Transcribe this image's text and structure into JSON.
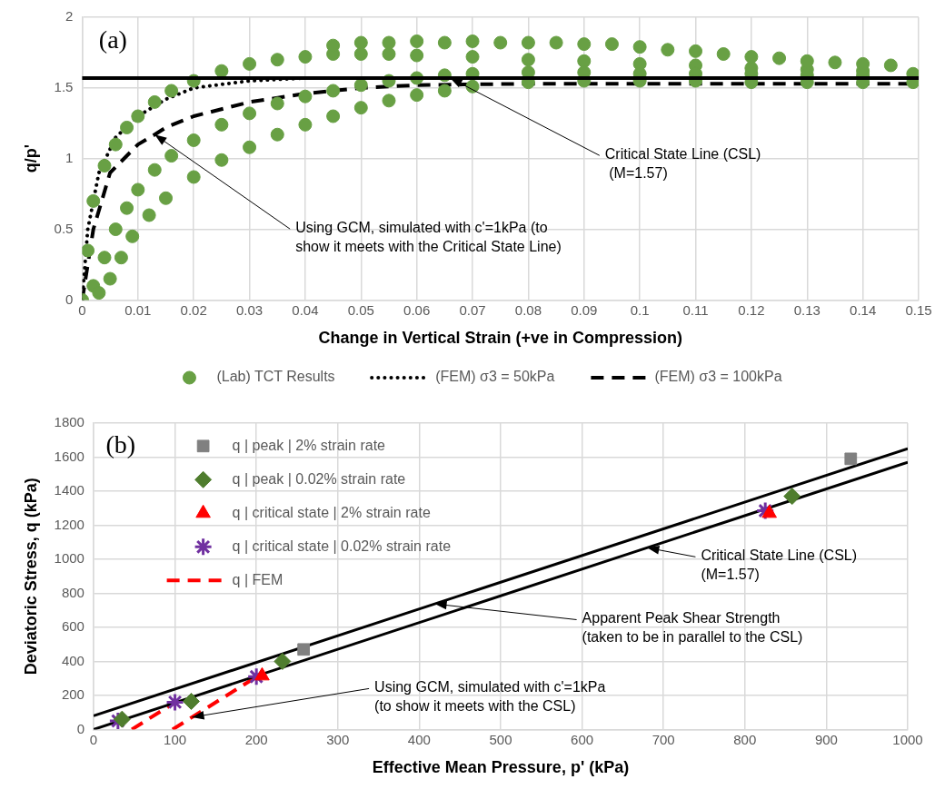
{
  "chart_data": [
    {
      "type": "scatter",
      "xlabel": "Change in Vertical Strain (+ve in Compression)",
      "ylabel": "q/p'",
      "xlim": [
        0,
        0.15
      ],
      "xticks": [
        0,
        0.01,
        0.02,
        0.03,
        0.04,
        0.05,
        0.06,
        0.07,
        0.08,
        0.09,
        0.1,
        0.11,
        0.12,
        0.13,
        0.14,
        0.15
      ],
      "ylim": [
        0,
        2
      ],
      "yticks": [
        0,
        0.5,
        1,
        1.5,
        2
      ],
      "grid": true,
      "legend": "bottom",
      "series": [
        {
          "name": "(Lab) TCT Results",
          "color": "#68a044",
          "marker": "circle",
          "x": [
            0,
            0.001,
            0.002,
            0.004,
            0.006,
            0.008,
            0.01,
            0.013,
            0.016,
            0.02,
            0.025,
            0.03,
            0.035,
            0.04,
            0.045,
            0.05,
            0.055,
            0.06,
            0.07,
            0.08,
            0.09,
            0.1,
            0.11,
            0.12,
            0.13,
            0.14,
            0.149,
            0.045,
            0.05,
            0.055,
            0.06,
            0.065,
            0.07,
            0.075,
            0.08,
            0.085,
            0.09,
            0.095,
            0.1,
            0.105,
            0.11,
            0.115,
            0.12,
            0.125,
            0.13,
            0.135,
            0.14,
            0.145,
            0.002,
            0.004,
            0.006,
            0.008,
            0.01,
            0.013,
            0.016,
            0.02,
            0.025,
            0.03,
            0.035,
            0.04,
            0.045,
            0.05,
            0.055,
            0.06,
            0.065,
            0.07,
            0.08,
            0.09,
            0.1,
            0.11,
            0.12,
            0.13,
            0.14,
            0.003,
            0.005,
            0.007,
            0.009,
            0.012,
            0.015,
            0.02,
            0.025,
            0.03,
            0.035,
            0.04,
            0.045,
            0.05,
            0.055,
            0.06,
            0.065,
            0.07,
            0.08,
            0.09,
            0.1,
            0.11,
            0.12,
            0.13,
            0.14,
            0.149
          ],
          "values": [
            0,
            0.35,
            0.7,
            0.95,
            1.1,
            1.22,
            1.3,
            1.4,
            1.48,
            1.55,
            1.62,
            1.67,
            1.7,
            1.72,
            1.74,
            1.74,
            1.74,
            1.73,
            1.72,
            1.7,
            1.69,
            1.67,
            1.66,
            1.64,
            1.63,
            1.62,
            1.6,
            1.8,
            1.82,
            1.82,
            1.83,
            1.82,
            1.83,
            1.82,
            1.82,
            1.82,
            1.81,
            1.81,
            1.79,
            1.77,
            1.76,
            1.74,
            1.72,
            1.71,
            1.69,
            1.68,
            1.67,
            1.66,
            0.1,
            0.3,
            0.5,
            0.65,
            0.78,
            0.92,
            1.02,
            1.13,
            1.24,
            1.32,
            1.39,
            1.44,
            1.48,
            1.52,
            1.55,
            1.57,
            1.59,
            1.6,
            1.61,
            1.61,
            1.6,
            1.6,
            1.6,
            1.59,
            1.59,
            0.05,
            0.15,
            0.3,
            0.45,
            0.6,
            0.72,
            0.87,
            0.99,
            1.08,
            1.17,
            1.24,
            1.3,
            1.36,
            1.41,
            1.45,
            1.48,
            1.51,
            1.54,
            1.55,
            1.55,
            1.55,
            1.54,
            1.54,
            1.54,
            1.54
          ]
        },
        {
          "name": "(FEM) σ3 = 50kPa",
          "type": "line",
          "color": "#000000",
          "marker": "none",
          "line_style": "dotted",
          "x": [
            0,
            0.001,
            0.003,
            0.006,
            0.01,
            0.015,
            0.02,
            0.03,
            0.04,
            0.05,
            0.06,
            0.07,
            0.08
          ],
          "values": [
            0,
            0.5,
            0.9,
            1.15,
            1.3,
            1.42,
            1.5,
            1.55,
            1.57,
            1.57,
            1.57,
            1.57,
            1.57
          ]
        },
        {
          "name": "(FEM) σ3 = 100kPa",
          "type": "line",
          "color": "#000000",
          "marker": "none",
          "line_style": "dashed",
          "x": [
            0,
            0.002,
            0.005,
            0.01,
            0.013,
            0.015,
            0.02,
            0.03,
            0.04,
            0.05,
            0.06,
            0.08,
            0.1,
            0.15
          ],
          "values": [
            0,
            0.5,
            0.9,
            1.1,
            1.17,
            1.22,
            1.3,
            1.4,
            1.46,
            1.5,
            1.52,
            1.53,
            1.53,
            1.53
          ]
        }
      ],
      "ref_lines": [
        {
          "axis": "y",
          "value": 1.57,
          "color": "#000000"
        }
      ],
      "annotations": [
        "(a)",
        {
          "text": "Critical State Line (CSL)\n (M=1.57)",
          "x": 0.066,
          "y": 1.57
        },
        {
          "text": "Using GCM, simulated with c'=1kPa (to\nshow it meets with the Critical State Line)",
          "x": 0.013,
          "y": 1.17
        }
      ]
    },
    {
      "type": "scatter",
      "xlabel": "Effective Mean Pressure, p' (kPa)",
      "ylabel": "Deviatoric Stress, q (kPa)",
      "xlim": [
        0,
        1000
      ],
      "xticks": [
        0,
        100,
        200,
        300,
        400,
        500,
        600,
        700,
        800,
        900,
        1000
      ],
      "ylim": [
        0,
        1800
      ],
      "yticks": [
        0,
        200,
        400,
        600,
        800,
        1000,
        1200,
        1400,
        1600,
        1800
      ],
      "grid": true,
      "legend": "top left",
      "series": [
        {
          "type": "line",
          "color": "#000000",
          "marker": "none",
          "line_style": "solid",
          "x": [
            0,
            1000
          ],
          "values": [
            80,
            1650
          ]
        },
        {
          "type": "line",
          "color": "#000000",
          "marker": "none",
          "line_style": "solid",
          "x": [
            0,
            1000
          ],
          "values": [
            0,
            1570
          ]
        },
        {
          "name": "q | peak | 2% strain rate",
          "color": "#808080",
          "marker": "square",
          "x": [
            258,
            930
          ],
          "values": [
            470,
            1590
          ]
        },
        {
          "name": "q | peak | 0.02% strain rate",
          "color": "#4f7d2e",
          "marker": "diamond",
          "x": [
            35,
            120,
            232,
            858
          ],
          "values": [
            60,
            165,
            400,
            1370
          ]
        },
        {
          "name": "q | critical state | 2% strain rate",
          "color": "#ff0000",
          "marker": "triangle",
          "x": [
            207,
            830
          ],
          "values": [
            315,
            1270
          ]
        },
        {
          "name": "q | critical state | 0.02% strain rate",
          "color": "#7030a0",
          "marker": "cross",
          "x": [
            30,
            100,
            200,
            825
          ],
          "values": [
            50,
            160,
            310,
            1285
          ]
        },
        {
          "name": "q | FEM",
          "type": "line",
          "color": "#ff0000",
          "marker": "none",
          "line_style": "dashed",
          "x": [
            47,
            101,
            99,
            97,
            202
          ],
          "values": [
            0,
            162,
            null,
            0,
            315
          ]
        }
      ],
      "annotations": [
        "(b)",
        {
          "text": "Critical State Line (CSL)\n(M=1.57)",
          "x": 680,
          "y": 1067.6
        },
        {
          "text": "Apparent Peak Shear Strength\n(taken to be in parallel to the CSL)",
          "x": 419,
          "y": 737.8
        },
        {
          "text": "Using GCM, simulated with c'=1kPa\n(to show it meets with the CSL)",
          "x": 121,
          "y": 72
        }
      ]
    }
  ]
}
